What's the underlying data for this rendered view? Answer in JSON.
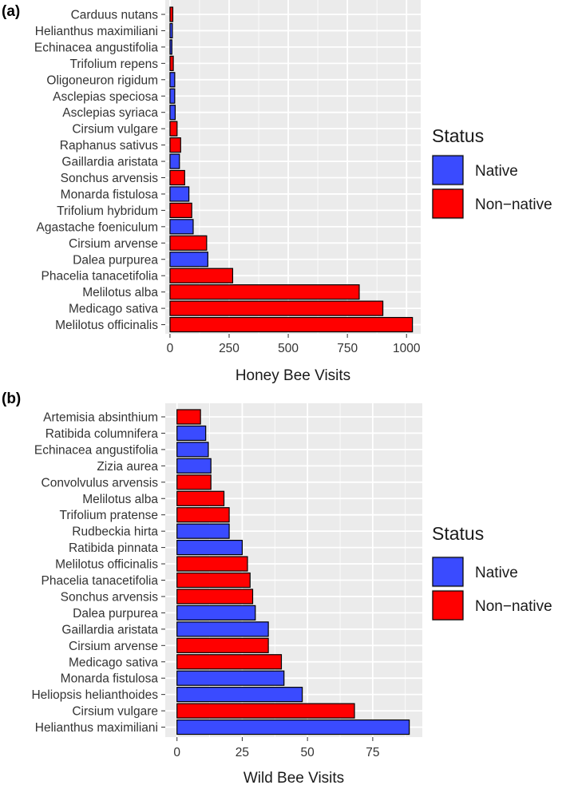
{
  "colors": {
    "native": "#3a4bff",
    "non_native": "#ff0000",
    "panel_bg": "#ebebeb",
    "grid": "#ffffff",
    "bar_outline": "#000000",
    "text": "#1a1a1a",
    "tick_text": "#333333"
  },
  "chart_data": [
    {
      "type": "bar",
      "orientation": "horizontal",
      "panel_label": "(a)",
      "xlabel": "Honey Bee Visits",
      "xlim": [
        -20,
        1060
      ],
      "xticks": [
        0,
        250,
        500,
        750,
        1000
      ],
      "xtick_labels": [
        "0",
        "250",
        "500",
        "750",
        "1000"
      ],
      "legend": {
        "title": "Status",
        "position": "right",
        "items": [
          {
            "key": "native",
            "label": "Native"
          },
          {
            "key": "non_native",
            "label": "Non−native"
          }
        ]
      },
      "categories": [
        "Carduus nutans",
        "Helianthus maximiliani",
        "Echinacea angustifolia",
        "Trifolium repens",
        "Oligoneuron rigidum",
        "Asclepias speciosa",
        "Asclepias syriaca",
        "Cirsium vulgare",
        "Raphanus sativus",
        "Gaillardia aristata",
        "Sonchus arvensis",
        "Monarda fistulosa",
        "Trifolium hybridum",
        "Agastache foeniculum",
        "Cirsium arvense",
        "Dalea purpurea",
        "Phacelia tanacetifolia",
        "Melilotus alba",
        "Medicago sativa",
        "Melilotus officinalis"
      ],
      "values": [
        12,
        10,
        8,
        14,
        20,
        20,
        22,
        30,
        45,
        40,
        62,
        80,
        92,
        98,
        155,
        160,
        265,
        800,
        900,
        1025
      ],
      "status": [
        "non_native",
        "native",
        "native",
        "non_native",
        "native",
        "native",
        "native",
        "non_native",
        "non_native",
        "native",
        "non_native",
        "native",
        "non_native",
        "native",
        "non_native",
        "native",
        "non_native",
        "non_native",
        "non_native",
        "non_native"
      ]
    },
    {
      "type": "bar",
      "orientation": "horizontal",
      "panel_label": "(b)",
      "xlabel": "Wild Bee Visits",
      "xlim": [
        -4.5,
        94
      ],
      "xticks": [
        0,
        25,
        50,
        75
      ],
      "xtick_labels": [
        "0",
        "25",
        "50",
        "75"
      ],
      "legend": {
        "title": "Status",
        "position": "right",
        "items": [
          {
            "key": "native",
            "label": "Native"
          },
          {
            "key": "non_native",
            "label": "Non−native"
          }
        ]
      },
      "categories": [
        "Artemisia absinthium",
        "Ratibida columnifera",
        "Echinacea angustifolia",
        "Zizia aurea",
        "Convolvulus arvensis",
        "Melilotus alba",
        "Trifolium pratense",
        "Rudbeckia hirta",
        "Ratibida pinnata",
        "Melilotus officinalis",
        "Phacelia tanacetifolia",
        "Sonchus arvensis",
        "Dalea purpurea",
        "Gaillardia aristata",
        "Cirsium arvense",
        "Medicago sativa",
        "Monarda fistulosa",
        "Heliopsis helianthoides",
        "Cirsium vulgare",
        "Helianthus maximiliani"
      ],
      "values": [
        9,
        11,
        12,
        13,
        13,
        18,
        20,
        20,
        25,
        27,
        28,
        29,
        30,
        35,
        35,
        40,
        41,
        48,
        68,
        89
      ],
      "status": [
        "non_native",
        "native",
        "native",
        "native",
        "non_native",
        "non_native",
        "non_native",
        "native",
        "native",
        "non_native",
        "non_native",
        "non_native",
        "native",
        "native",
        "non_native",
        "non_native",
        "native",
        "native",
        "non_native",
        "native"
      ]
    }
  ]
}
